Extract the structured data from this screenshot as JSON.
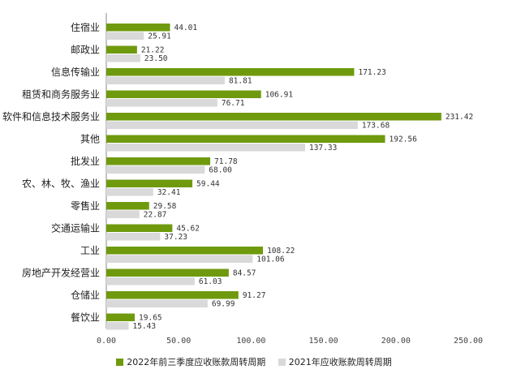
{
  "chart_data": {
    "type": "bar",
    "orientation": "horizontal",
    "categories": [
      "住宿业",
      "邮政业",
      "信息传输业",
      "租赁和商务服务业",
      "软件和信息技术服务业",
      "其他",
      "批发业",
      "农、林、牧、渔业",
      "零售业",
      "交通运输业",
      "工业",
      "房地产开发经营业",
      "仓储业",
      "餐饮业"
    ],
    "series": [
      {
        "name": "2022年前三季度应收账款周转周期",
        "color": "#6f9a0e",
        "values": [
          44.01,
          21.22,
          171.23,
          106.91,
          231.42,
          192.56,
          71.78,
          59.44,
          29.58,
          45.62,
          108.22,
          84.57,
          91.27,
          19.65
        ]
      },
      {
        "name": "2021年应收账款周转周期",
        "color": "#d9d9d9",
        "values": [
          25.91,
          23.5,
          81.81,
          76.71,
          173.68,
          137.33,
          68.0,
          32.41,
          22.87,
          37.23,
          101.06,
          61.03,
          69.99,
          15.43
        ]
      }
    ],
    "value_labels": [
      [
        "44.01",
        "21.22",
        "171.23",
        "106.91",
        "231.42",
        "192.56",
        "71.78",
        "59.44",
        "29.58",
        "45.62",
        "108.22",
        "84.57",
        "91.27",
        "19.65"
      ],
      [
        "25.91",
        "23.50",
        "81.81",
        "76.71",
        "173.68",
        "137.33",
        "68.00",
        "32.41",
        "22.87",
        "37.23",
        "101.06",
        "61.03",
        "69.99",
        "15.43"
      ]
    ],
    "xlim": [
      0,
      250
    ],
    "xticks": [
      "0.00",
      "50.00",
      "100.00",
      "150.00",
      "200.00",
      "250.00"
    ],
    "grid": false,
    "legend_position": "bottom"
  }
}
